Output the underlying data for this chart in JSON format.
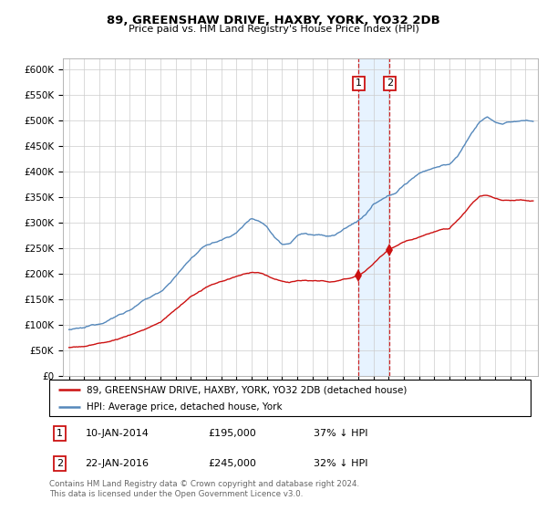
{
  "title1": "89, GREENSHAW DRIVE, HAXBY, YORK, YO32 2DB",
  "title2": "Price paid vs. HM Land Registry's House Price Index (HPI)",
  "ylim": [
    0,
    620000
  ],
  "yticks": [
    0,
    50000,
    100000,
    150000,
    200000,
    250000,
    300000,
    350000,
    400000,
    450000,
    500000,
    550000,
    600000
  ],
  "ytick_labels": [
    "£0",
    "£50K",
    "£100K",
    "£150K",
    "£200K",
    "£250K",
    "£300K",
    "£350K",
    "£400K",
    "£450K",
    "£500K",
    "£550K",
    "£600K"
  ],
  "hpi_color": "#5588bb",
  "property_color": "#cc1111",
  "sale1_year": 2014.027,
  "sale1_price": 195000,
  "sale1_pct": "37%",
  "sale2_year": 2016.06,
  "sale2_price": 245000,
  "sale2_pct": "32%",
  "sale1_date": "10-JAN-2014",
  "sale2_date": "22-JAN-2016",
  "legend1": "89, GREENSHAW DRIVE, HAXBY, YORK, YO32 2DB (detached house)",
  "legend2": "HPI: Average price, detached house, York",
  "footer": "Contains HM Land Registry data © Crown copyright and database right 2024.\nThis data is licensed under the Open Government Licence v3.0.",
  "background_color": "#ffffff",
  "grid_color": "#cccccc",
  "shade_color": "#ddeeff",
  "xlim_left": 1994.6,
  "xlim_right": 2025.8
}
